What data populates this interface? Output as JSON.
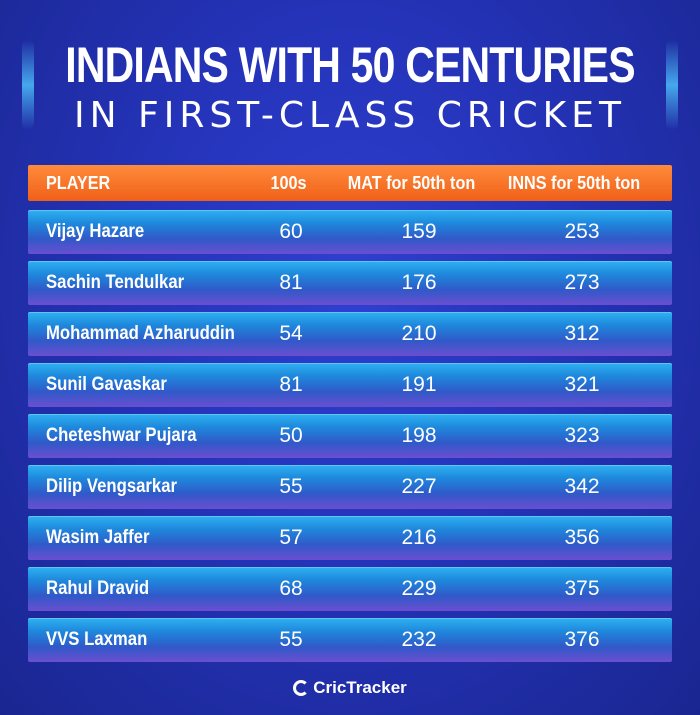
{
  "title": "INDIANS WITH 50 CENTURIES",
  "subtitle": "IN FIRST-CLASS CRICKET",
  "table": {
    "headers": {
      "player": "PLAYER",
      "hundreds": "100s",
      "mat": "MAT for 50th ton",
      "inns": "INNS for 50th ton"
    },
    "rows": [
      {
        "player": "Vijay Hazare",
        "hundreds": "60",
        "mat": "159",
        "inns": "253"
      },
      {
        "player": "Sachin Tendulkar",
        "hundreds": "81",
        "mat": "176",
        "inns": "273"
      },
      {
        "player": "Mohammad Azharuddin",
        "hundreds": "54",
        "mat": "210",
        "inns": "312"
      },
      {
        "player": "Sunil Gavaskar",
        "hundreds": "81",
        "mat": "191",
        "inns": "321"
      },
      {
        "player": "Cheteshwar Pujara",
        "hundreds": "50",
        "mat": "198",
        "inns": "323"
      },
      {
        "player": "Dilip Vengsarkar",
        "hundreds": "55",
        "mat": "227",
        "inns": "342"
      },
      {
        "player": "Wasim Jaffer",
        "hundreds": "57",
        "mat": "216",
        "inns": "356"
      },
      {
        "player": "Rahul Dravid",
        "hundreds": "68",
        "mat": "229",
        "inns": "375"
      },
      {
        "player": "VVS Laxman",
        "hundreds": "55",
        "mat": "232",
        "inns": "376"
      }
    ]
  },
  "brand": {
    "name": "CricTracker",
    "logo_icon": "crictracker-logo-icon"
  },
  "colors": {
    "background": "#2433b8",
    "header_bar": "#f47123",
    "row_top": "#2fb1f2",
    "row_bottom": "#6a4fd0"
  }
}
